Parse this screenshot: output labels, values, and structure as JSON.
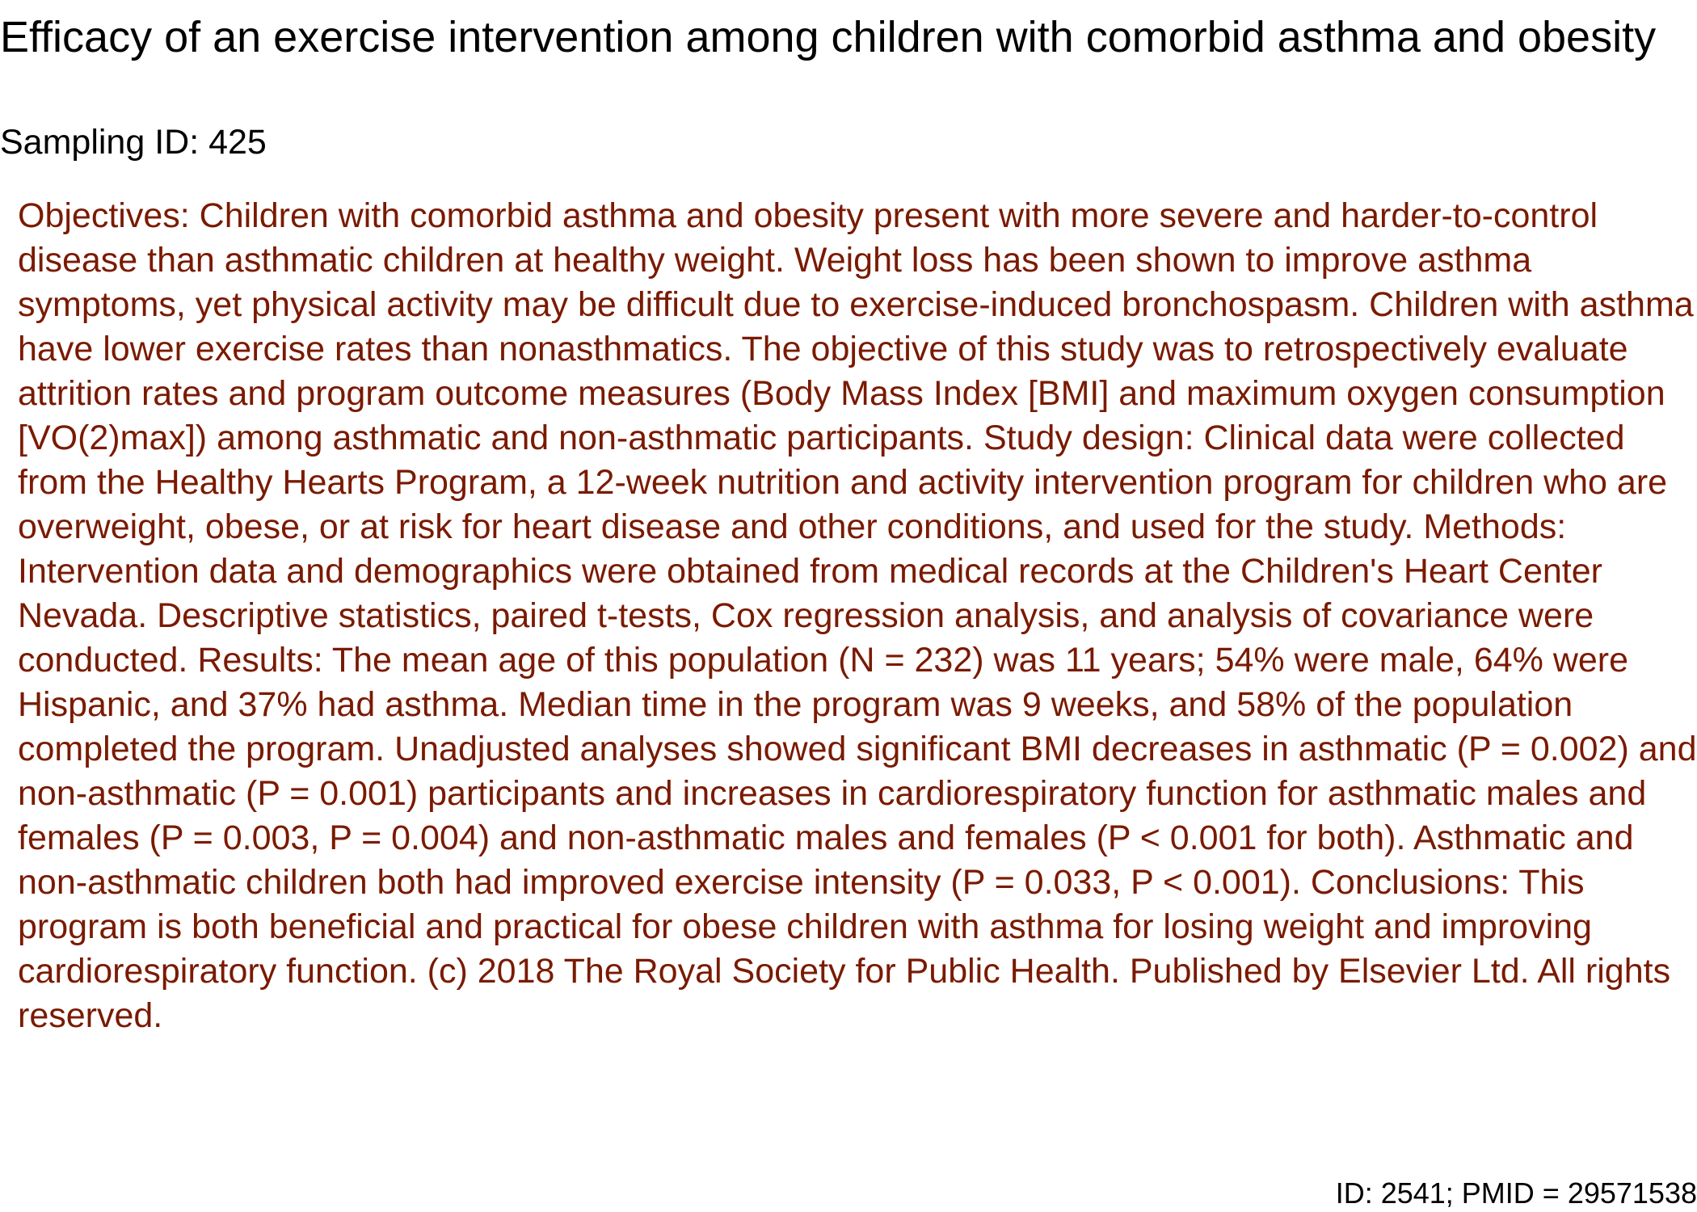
{
  "document": {
    "title": "Efficacy of an exercise intervention among children with comorbid asthma and obesity",
    "sampling_id": "Sampling ID: 425",
    "abstract": "Objectives: Children with comorbid asthma and obesity present with more severe and harder-to-control disease than asthmatic children at healthy weight. Weight loss has been shown to improve asthma symptoms, yet physical activity may be difficult due to exercise-induced bronchospasm. Children with asthma have lower exercise rates than nonasthmatics. The objective of this study was to retrospectively evaluate attrition rates and program outcome measures (Body Mass Index [BMI] and maximum oxygen consumption [VO(2)max]) among asthmatic and non-asthmatic participants. Study design: Clinical data were collected from the Healthy Hearts Program, a 12-week nutrition and activity intervention program for children who are overweight, obese, or at risk for heart disease and other conditions, and used for the study. Methods: Intervention data and demographics were obtained from medical records at the Children's Heart Center Nevada. Descriptive statistics, paired t-tests, Cox regression analysis, and analysis of covariance were conducted. Results: The mean age of this population (N = 232) was 11 years; 54% were male, 64% were Hispanic, and 37% had asthma. Median time in the program was 9 weeks, and 58% of the population completed the program. Unadjusted analyses showed significant BMI decreases in asthmatic (P = 0.002) and non-asthmatic (P = 0.001) participants and increases in cardiorespiratory function for asthmatic males and females (P = 0.003, P = 0.004) and non-asthmatic males and females (P < 0.001 for both). Asthmatic and non-asthmatic children both had improved exercise intensity (P = 0.033, P < 0.001). Conclusions: This program is both beneficial and practical for obese children with asthma for losing weight and improving cardiorespiratory function. (c) 2018 The Royal Society for Public Health. Published by Elsevier Ltd. All rights reserved.",
    "footer_id": "ID: 2541; PMID = 29571538"
  },
  "colors": {
    "title_text": "#000000",
    "abstract_text": "#7a1a00",
    "background": "#ffffff"
  }
}
